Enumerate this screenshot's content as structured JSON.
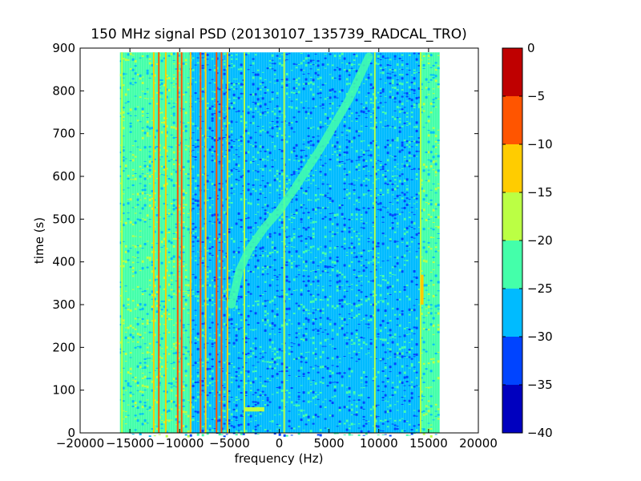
{
  "chart_data": {
    "type": "heatmap",
    "title": "150 MHz signal PSD (20130107_135739_RADCAL_TRO)",
    "xlabel": "frequency (Hz)",
    "ylabel": "time (s)",
    "xlim": [
      -20000,
      20000
    ],
    "ylim": [
      0,
      900
    ],
    "x_ticks": [
      -20000,
      -15000,
      -10000,
      -5000,
      0,
      5000,
      10000,
      15000,
      20000
    ],
    "x_tick_labels": [
      "−20000",
      "−15000",
      "−10000",
      "−5000",
      "0",
      "5000",
      "10000",
      "15000",
      "20000"
    ],
    "y_ticks": [
      0,
      100,
      200,
      300,
      400,
      500,
      600,
      700,
      800,
      900
    ],
    "y_tick_labels": [
      "0",
      "100",
      "200",
      "300",
      "400",
      "500",
      "600",
      "700",
      "800",
      "900"
    ],
    "data_extent": {
      "x": [
        -16000,
        16000
      ],
      "y": [
        0,
        890
      ]
    },
    "colorbar": {
      "range": [
        -40,
        0
      ],
      "levels": [
        -40,
        -35,
        -30,
        -25,
        -20,
        -15,
        -10,
        -5,
        0
      ],
      "tick_labels": [
        "−40",
        "−35",
        "−30",
        "−25",
        "−20",
        "−15",
        "−10",
        "−5",
        "0"
      ],
      "band_colors": [
        "#0000bf",
        "#0044ff",
        "#00bbff",
        "#44ffaa",
        "#bbff44",
        "#ffcc00",
        "#ff5500",
        "#bf0000"
      ]
    },
    "background_level_by_x": [
      {
        "x": [
          -16000,
          -9000
        ],
        "level": -25
      },
      {
        "x": [
          -9000,
          -3500
        ],
        "level": -27
      },
      {
        "x": [
          -3500,
          1000
        ],
        "level": -28
      },
      {
        "x": [
          1000,
          14000
        ],
        "level": -27
      },
      {
        "x": [
          14000,
          16000
        ],
        "level": -23
      }
    ],
    "persistent_lines": [
      {
        "x": -15800,
        "level": -17
      },
      {
        "x": -12600,
        "level": -12
      },
      {
        "x": -12100,
        "level": -8
      },
      {
        "x": -11400,
        "level": -14
      },
      {
        "x": -10200,
        "level": -6
      },
      {
        "x": -9800,
        "level": -9
      },
      {
        "x": -8900,
        "level": -11
      },
      {
        "x": -7900,
        "level": -8
      },
      {
        "x": -7400,
        "level": -13
      },
      {
        "x": -6300,
        "level": -9
      },
      {
        "x": -5800,
        "level": -7
      },
      {
        "x": -5200,
        "level": -15
      },
      {
        "x": -3500,
        "level": -17
      },
      {
        "x": 500,
        "level": -17
      },
      {
        "x": 9600,
        "level": -18
      },
      {
        "x": 14200,
        "level": -20
      }
    ],
    "features": [
      {
        "kind": "drifting-trace",
        "points": [
          [
            -4800,
            300
          ],
          [
            -4000,
            380
          ],
          [
            -3000,
            430
          ],
          [
            -1500,
            480
          ],
          [
            0,
            520
          ],
          [
            1500,
            570
          ],
          [
            4000,
            660
          ],
          [
            7000,
            780
          ],
          [
            9000,
            880
          ]
        ],
        "level": -22
      },
      {
        "kind": "segment",
        "x": [
          -3500,
          -1500
        ],
        "y": [
          50,
          60
        ],
        "level": -20
      },
      {
        "kind": "segment",
        "x": [
          14200,
          14500
        ],
        "y": [
          300,
          370
        ],
        "level": -15
      }
    ]
  }
}
